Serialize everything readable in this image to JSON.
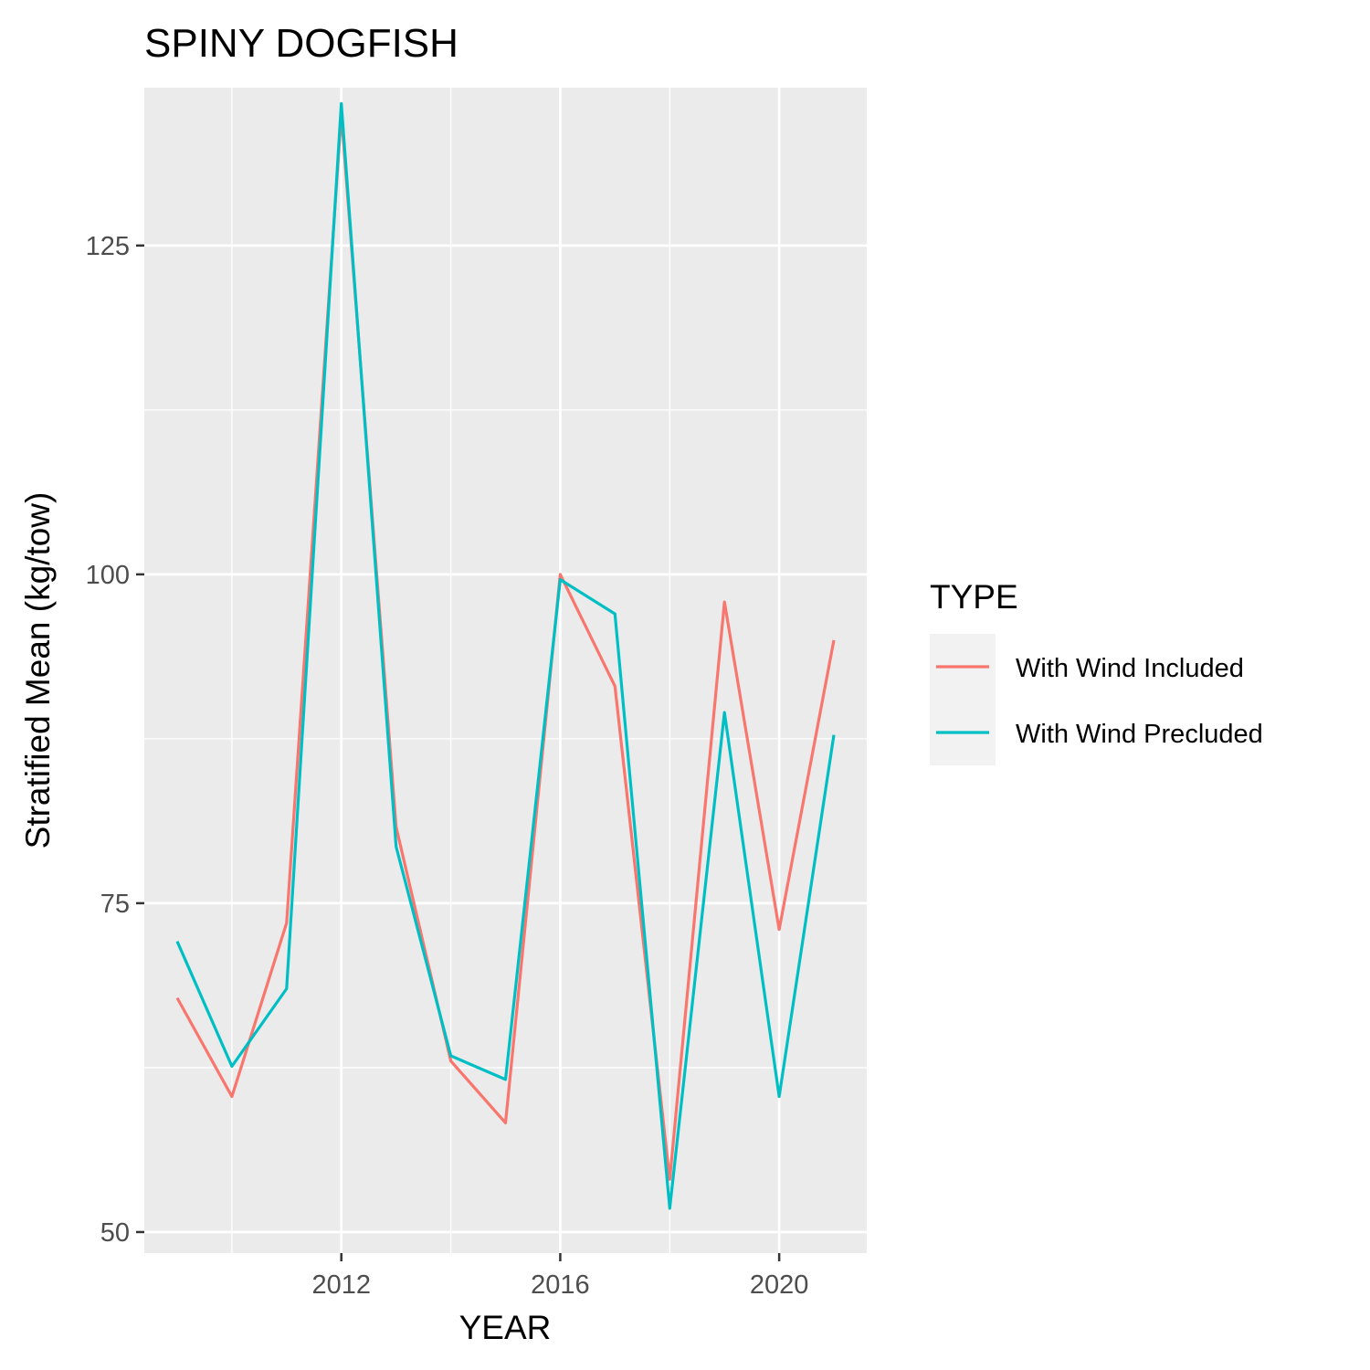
{
  "chart_data": {
    "type": "line",
    "title": "SPINY DOGFISH",
    "xlabel": "YEAR",
    "ylabel": "Stratified Mean (kg/tow)",
    "x": [
      2009,
      2010,
      2011,
      2012,
      2013,
      2014,
      2015,
      2016,
      2017,
      2018,
      2019,
      2020,
      2021
    ],
    "xlim": [
      2008.4,
      2021.6
    ],
    "ylim": [
      48.4,
      137.0
    ],
    "x_ticks": [
      2012,
      2016,
      2020
    ],
    "x_tick_labels": [
      "2012",
      "2016",
      "2020"
    ],
    "x_minor_ticks": [
      2010,
      2014,
      2018
    ],
    "y_ticks": [
      50,
      75,
      100,
      125
    ],
    "y_tick_labels": [
      "50",
      "75",
      "100",
      "125"
    ],
    "y_minor_ticks": [
      62.5,
      87.5,
      112.5
    ],
    "grid": true,
    "legend": {
      "title": "TYPE",
      "position": "right"
    },
    "series": [
      {
        "name": "With Wind Included",
        "color": "#F8766D",
        "values": [
          67.8,
          60.3,
          73.5,
          135.0,
          80.8,
          63.0,
          58.3,
          100.0,
          91.5,
          54.0,
          97.9,
          73.0,
          95.0
        ]
      },
      {
        "name": "With Wind Precluded",
        "color": "#00BFC4",
        "values": [
          72.1,
          62.6,
          68.5,
          135.8,
          79.3,
          63.4,
          61.6,
          99.6,
          97.0,
          51.8,
          89.5,
          60.3,
          87.8
        ]
      }
    ],
    "panel_background": "#EBEBEB",
    "grid_color": "#FFFFFF",
    "legend_key_background": "#F2F2F2"
  }
}
